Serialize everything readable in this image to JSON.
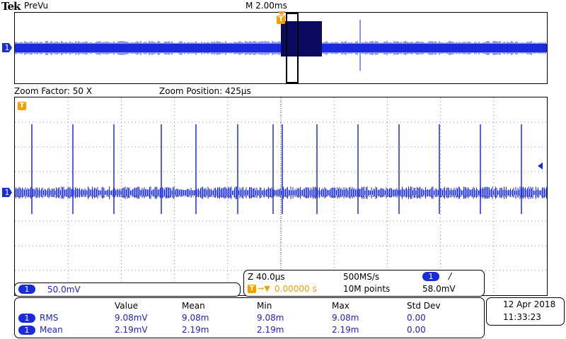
{
  "header": {
    "brand": "Tek",
    "mode": "PreVu",
    "timebase": "M 2.00ms"
  },
  "zoom": {
    "factor": "Zoom Factor: 50 X",
    "position": "Zoom Position: 425µs"
  },
  "channel": {
    "number": "1",
    "scale": "50.0mV"
  },
  "markers": {
    "trigger": "T"
  },
  "acq": {
    "zoom_scale": "Z 40.0µs",
    "sample_rate": "500MS/s",
    "trigger_pos": "0.00000 s",
    "record": "10M points",
    "trigger_level": "58.0mV",
    "slope": "/"
  },
  "measurements": {
    "headers": [
      "Value",
      "Mean",
      "Min",
      "Max",
      "Std Dev"
    ],
    "rows": [
      {
        "ch": "1",
        "name": "RMS",
        "values": [
          "9.08mV",
          "9.08m",
          "9.08m",
          "9.08m",
          "0.00"
        ]
      },
      {
        "ch": "1",
        "name": "Mean",
        "values": [
          "2.19mV",
          "2.19m",
          "2.19m",
          "2.19m",
          "0.00"
        ]
      }
    ]
  },
  "datetime": {
    "date": "12 Apr  2018",
    "time": "11:33:23"
  },
  "colors": {
    "trace": "#1a2bdc",
    "dark_trace": "#0a0a60",
    "trigger": "#f5a000"
  }
}
